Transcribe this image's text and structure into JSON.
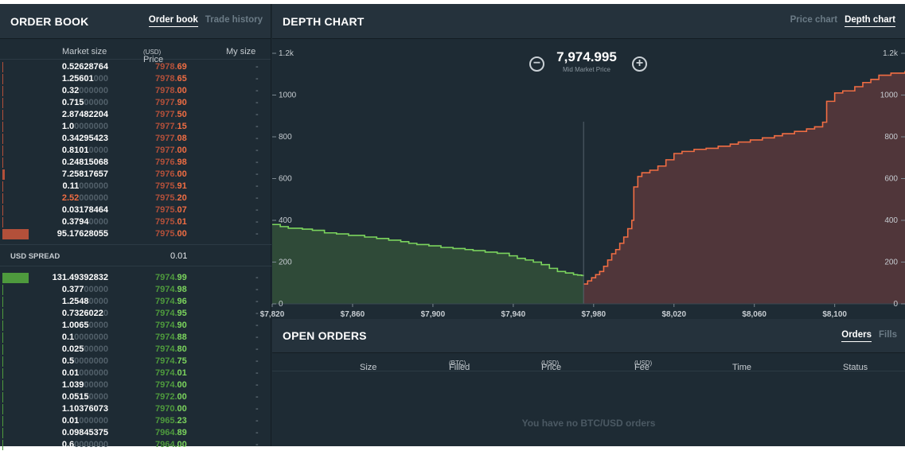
{
  "order_book": {
    "title": "ORDER BOOK",
    "tabs": [
      {
        "label": "Order book",
        "active": true
      },
      {
        "label": "Trade history",
        "active": false
      }
    ],
    "columns": {
      "market_size": "Market size",
      "price": "Price",
      "price_unit": "(USD)",
      "my_size": "My size"
    },
    "asks": [
      {
        "size_main": "0.52628764",
        "size_pad": "",
        "price_a": "7978.",
        "price_b": "69",
        "my": "-",
        "depth": 0.003
      },
      {
        "size_main": "1.25601",
        "size_pad": "000",
        "price_a": "7978.",
        "price_b": "65",
        "my": "-",
        "depth": 0.005
      },
      {
        "size_main": "0.32",
        "size_pad": "000000",
        "price_a": "7978.",
        "price_b": "00",
        "my": "-",
        "depth": 0.002
      },
      {
        "size_main": "0.715",
        "size_pad": "00000",
        "price_a": "7977.",
        "price_b": "90",
        "my": "-",
        "depth": 0.003
      },
      {
        "size_main": "2.87482204",
        "size_pad": "",
        "price_a": "7977.",
        "price_b": "50",
        "my": "-",
        "depth": 0.03
      },
      {
        "size_main": "1.0",
        "size_pad": "0000000",
        "price_a": "7977.",
        "price_b": "15",
        "my": "-",
        "depth": 0.005
      },
      {
        "size_main": "0.34295423",
        "size_pad": "",
        "price_a": "7977.",
        "price_b": "08",
        "my": "-",
        "depth": 0.002
      },
      {
        "size_main": "0.8101",
        "size_pad": "0000",
        "price_a": "7977.",
        "price_b": "00",
        "my": "-",
        "depth": 0.004
      },
      {
        "size_main": "0.24815068",
        "size_pad": "",
        "price_a": "7976.",
        "price_b": "98",
        "my": "-",
        "depth": 0.002
      },
      {
        "size_main": "7.25817657",
        "size_pad": "",
        "price_a": "7976.",
        "price_b": "00",
        "my": "-",
        "depth": 0.08
      },
      {
        "size_main": "0.11",
        "size_pad": "000000",
        "price_a": "7975.",
        "price_b": "91",
        "my": "-",
        "depth": 0.002
      },
      {
        "size_main": "2.52",
        "size_pad": "000000",
        "price_a": "7975.",
        "price_b": "20",
        "my": "-",
        "depth": 0.03,
        "highlight": true
      },
      {
        "size_main": "0.03178464",
        "size_pad": "",
        "price_a": "7975.",
        "price_b": "07",
        "my": "-",
        "depth": 0.001
      },
      {
        "size_main": "0.3794",
        "size_pad": "0000",
        "price_a": "7975.",
        "price_b": "01",
        "my": "-",
        "depth": 0.003
      },
      {
        "size_main": "95.17628055",
        "size_pad": "",
        "price_a": "7975.",
        "price_b": "00",
        "my": "-",
        "depth": 1.0
      }
    ],
    "spread": {
      "label": "USD SPREAD",
      "value": "0.01"
    },
    "bids": [
      {
        "size_main": "131.49392832",
        "size_pad": "",
        "price_a": "7974.",
        "price_b": "99",
        "my": "-",
        "depth": 1.0
      },
      {
        "size_main": "0.377",
        "size_pad": "00000",
        "price_a": "7974.",
        "price_b": "98",
        "my": "-",
        "depth": 0.003
      },
      {
        "size_main": "1.2548",
        "size_pad": "0000",
        "price_a": "7974.",
        "price_b": "96",
        "my": "-",
        "depth": 0.01
      },
      {
        "size_main": "0.7326022",
        "size_pad": "0",
        "price_a": "7974.",
        "price_b": "95",
        "my": "-",
        "depth": 0.006
      },
      {
        "size_main": "1.0065",
        "size_pad": "0000",
        "price_a": "7974.",
        "price_b": "90",
        "my": "-",
        "depth": 0.008
      },
      {
        "size_main": "0.1",
        "size_pad": "0000000",
        "price_a": "7974.",
        "price_b": "88",
        "my": "-",
        "depth": 0.001
      },
      {
        "size_main": "0.025",
        "size_pad": "00000",
        "price_a": "7974.",
        "price_b": "80",
        "my": "-",
        "depth": 0.001
      },
      {
        "size_main": "0.5",
        "size_pad": "0000000",
        "price_a": "7974.",
        "price_b": "75",
        "my": "-",
        "depth": 0.004
      },
      {
        "size_main": "0.01",
        "size_pad": "000000",
        "price_a": "7974.",
        "price_b": "01",
        "my": "-",
        "depth": 0.001
      },
      {
        "size_main": "1.039",
        "size_pad": "00000",
        "price_a": "7974.",
        "price_b": "00",
        "my": "-",
        "depth": 0.008
      },
      {
        "size_main": "0.0515",
        "size_pad": "0000",
        "price_a": "7972.",
        "price_b": "00",
        "my": "-",
        "depth": 0.001
      },
      {
        "size_main": "1.10376073",
        "size_pad": "",
        "price_a": "7970.",
        "price_b": "00",
        "my": "-",
        "depth": 0.008
      },
      {
        "size_main": "0.01",
        "size_pad": "000000",
        "price_a": "7965.",
        "price_b": "23",
        "my": "-",
        "depth": 0.001
      },
      {
        "size_main": "0.09845375",
        "size_pad": "",
        "price_a": "7964.",
        "price_b": "89",
        "my": "-",
        "depth": 0.001
      },
      {
        "size_main": "0.6",
        "size_pad": "0000000",
        "price_a": "7964.",
        "price_b": "00",
        "my": "-",
        "depth": 0.005
      }
    ]
  },
  "depth_chart": {
    "title": "DEPTH CHART",
    "tabs": [
      {
        "label": "Price chart",
        "active": false
      },
      {
        "label": "Depth chart",
        "active": true
      }
    ],
    "mid_price": "7,974.995",
    "mid_label": "Mid Market Price",
    "zoom_out_icon": "minus-circle-icon",
    "zoom_in_icon": "plus-circle-icon"
  },
  "open_orders": {
    "title": "OPEN ORDERS",
    "tabs": [
      {
        "label": "Orders",
        "active": true
      },
      {
        "label": "Fills",
        "active": false
      }
    ],
    "columns": [
      {
        "label": "Size",
        "unit": ""
      },
      {
        "label": "Filled",
        "unit": "(BTC)"
      },
      {
        "label": "Price",
        "unit": "(USD)"
      },
      {
        "label": "Fee",
        "unit": "(USD)"
      },
      {
        "label": "Time",
        "unit": ""
      },
      {
        "label": "Status",
        "unit": ""
      }
    ],
    "empty_message": "You have no BTC/USD orders"
  },
  "colors": {
    "bg": "#1e2b34",
    "header_bg": "#25323c",
    "bid_line": "#7bd45d",
    "bid_fill": "#2f4a38",
    "ask_line": "#f06d43",
    "ask_fill": "#50363a",
    "ask_bar": "#b3503a",
    "bid_bar": "#4e9a3d"
  },
  "chart_data": {
    "type": "area",
    "x_ticks": [
      "$7,820",
      "$7,860",
      "$7,900",
      "$7,940",
      "$7,980",
      "$8,020",
      "$8,060",
      "$8,100"
    ],
    "x_tick_values": [
      7820,
      7860,
      7900,
      7940,
      7980,
      8020,
      8060,
      8100
    ],
    "y_ticks_left": [
      "1.2k",
      "1000",
      "800",
      "600",
      "400",
      "200",
      "0"
    ],
    "y_ticks_right": [
      "1.2k",
      "1000",
      "800",
      "600",
      "400",
      "200",
      "0"
    ],
    "y_tick_values": [
      1200,
      1000,
      800,
      600,
      400,
      200,
      0
    ],
    "xlim": [
      7820,
      8135
    ],
    "ylim": [
      0,
      1200
    ],
    "mid_price": 7974.995,
    "series": [
      {
        "name": "bids",
        "points": [
          [
            7820,
            380
          ],
          [
            7824,
            370
          ],
          [
            7828,
            362
          ],
          [
            7835,
            358
          ],
          [
            7840,
            352
          ],
          [
            7846,
            340
          ],
          [
            7852,
            335
          ],
          [
            7858,
            328
          ],
          [
            7866,
            320
          ],
          [
            7872,
            313
          ],
          [
            7878,
            305
          ],
          [
            7884,
            298
          ],
          [
            7888,
            290
          ],
          [
            7892,
            284
          ],
          [
            7898,
            278
          ],
          [
            7904,
            270
          ],
          [
            7910,
            265
          ],
          [
            7916,
            260
          ],
          [
            7920,
            255
          ],
          [
            7926,
            248
          ],
          [
            7932,
            242
          ],
          [
            7938,
            230
          ],
          [
            7942,
            218
          ],
          [
            7946,
            210
          ],
          [
            7950,
            200
          ],
          [
            7954,
            188
          ],
          [
            7958,
            170
          ],
          [
            7962,
            155
          ],
          [
            7966,
            148
          ],
          [
            7970,
            140
          ],
          [
            7972,
            138
          ],
          [
            7974,
            136
          ],
          [
            7975,
            132
          ]
        ]
      },
      {
        "name": "asks",
        "points": [
          [
            7975,
            95
          ],
          [
            7977,
            110
          ],
          [
            7979,
            125
          ],
          [
            7981,
            140
          ],
          [
            7983,
            155
          ],
          [
            7985,
            180
          ],
          [
            7987,
            210
          ],
          [
            7989,
            240
          ],
          [
            7991,
            260
          ],
          [
            7993,
            290
          ],
          [
            7995,
            320
          ],
          [
            7997,
            360
          ],
          [
            7999,
            400
          ],
          [
            8000,
            560
          ],
          [
            8002,
            610
          ],
          [
            8004,
            628
          ],
          [
            8008,
            640
          ],
          [
            8012,
            660
          ],
          [
            8016,
            690
          ],
          [
            8020,
            720
          ],
          [
            8024,
            730
          ],
          [
            8030,
            740
          ],
          [
            8036,
            745
          ],
          [
            8042,
            755
          ],
          [
            8048,
            765
          ],
          [
            8052,
            775
          ],
          [
            8058,
            785
          ],
          [
            8064,
            795
          ],
          [
            8070,
            805
          ],
          [
            8074,
            815
          ],
          [
            8080,
            826
          ],
          [
            8086,
            838
          ],
          [
            8090,
            848
          ],
          [
            8094,
            870
          ],
          [
            8096,
            970
          ],
          [
            8100,
            1010
          ],
          [
            8104,
            1020
          ],
          [
            8110,
            1040
          ],
          [
            8114,
            1060
          ],
          [
            8118,
            1075
          ],
          [
            8122,
            1095
          ],
          [
            8128,
            1105
          ],
          [
            8135,
            1115
          ]
        ]
      }
    ]
  }
}
